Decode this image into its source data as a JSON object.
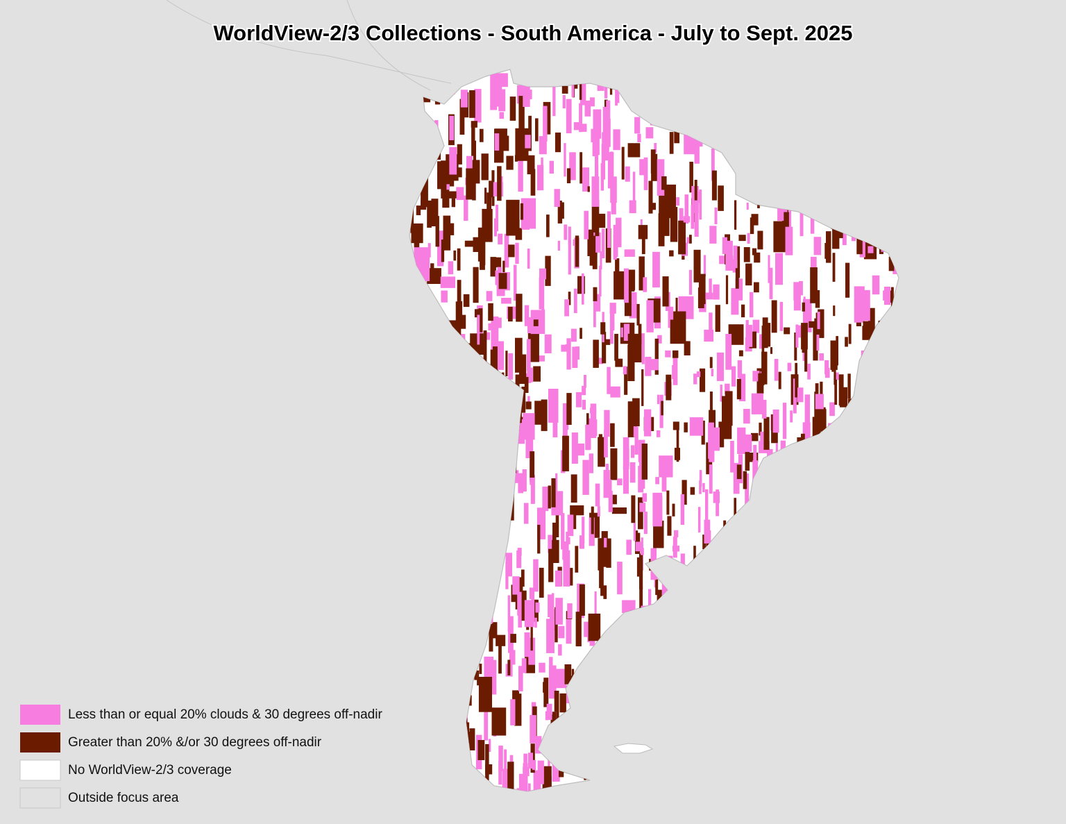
{
  "title": "WorldView-2/3 Collections - South America - July to Sept. 2025",
  "legend": [
    {
      "label": "Less than or equal 20% clouds & 30 degrees off-nadir",
      "color": "#f77ee0"
    },
    {
      "label": "Greater than 20% &/or 30 degrees off-nadir",
      "color": "#6b1c00"
    },
    {
      "label": "No WorldView-2/3 coverage",
      "color": "#ffffff"
    },
    {
      "label": "Outside focus area",
      "color": "#e1e1e1"
    }
  ]
}
